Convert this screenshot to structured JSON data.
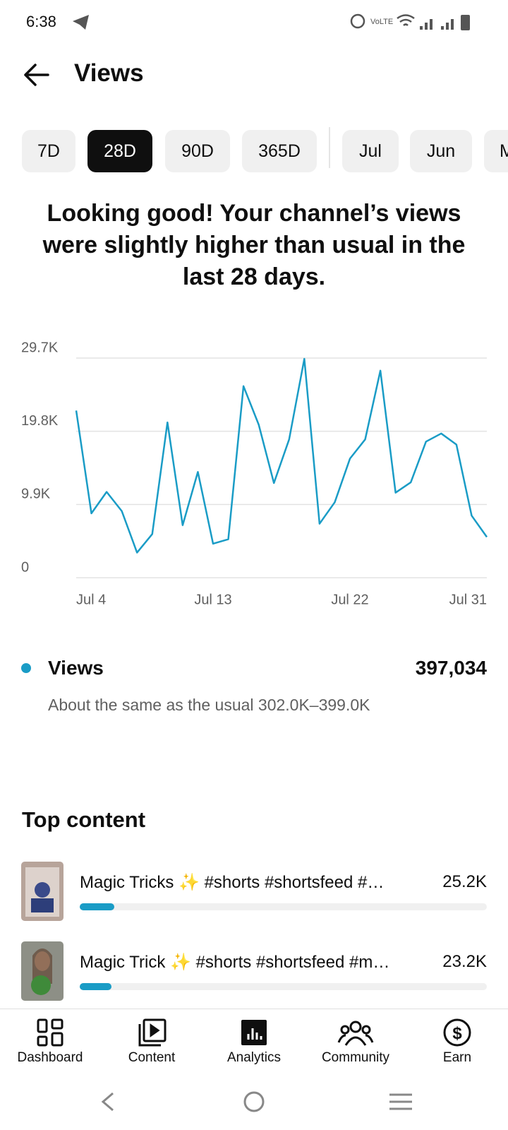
{
  "status_bar": {
    "time": "6:38"
  },
  "header": {
    "title": "Views"
  },
  "tabs": [
    "7D",
    "28D",
    "90D",
    "365D",
    "Jul",
    "Jun",
    "M"
  ],
  "headline": "Looking good! Your channel’s views were slightly higher than usual in the last 28 days.",
  "chart_data": {
    "type": "line",
    "categories": [
      "Jul 4",
      null,
      null,
      null,
      null,
      null,
      null,
      null,
      null,
      "Jul 13",
      null,
      null,
      null,
      null,
      null,
      null,
      null,
      null,
      "Jul 22",
      null,
      null,
      null,
      null,
      null,
      null,
      null,
      null,
      "Jul 31"
    ],
    "series": [
      {
        "name": "Views",
        "color": "#1a9cc6",
        "values": [
          22600,
          8700,
          11600,
          9000,
          3400,
          5900,
          21000,
          7100,
          14300,
          4600,
          5200,
          25900,
          20700,
          12800,
          18700,
          29600,
          7300,
          10200,
          16100,
          18700,
          28000,
          11500,
          12900,
          18400,
          19500,
          18000,
          8400,
          5500
        ]
      }
    ],
    "ylim": [
      0,
      29700
    ],
    "yticks": [
      0,
      {
        "value": 9900,
        "label": "9.9K"
      },
      {
        "value": 19800,
        "label": "19.8K"
      },
      {
        "value": 29700,
        "label": "29.7K"
      }
    ],
    "grid": true
  },
  "summary": {
    "total": "397,034",
    "note": "About the same as the usual 302.0K–399.0K"
  },
  "top_content": {
    "title": "Top content",
    "items": [
      {
        "title": "Magic Tricks ✨ #shorts #shortsfeed #…",
        "value": "25.2K"
      },
      {
        "title": "Magic Trick ✨ #shorts #shortsfeed #m…",
        "value": "23.2K"
      }
    ]
  },
  "nav": [
    "Dashboard",
    "Content",
    "Analytics",
    "Community",
    "Earn"
  ]
}
